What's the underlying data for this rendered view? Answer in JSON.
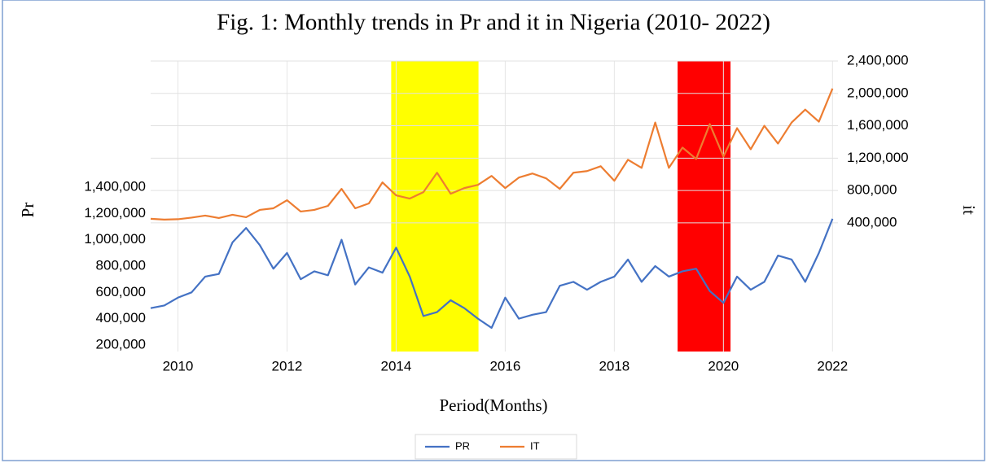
{
  "chart_data": {
    "type": "line",
    "title": "Fig. 1: Monthly trends in Pr and it in Nigeria (2010- 2022)",
    "xlabel": "Period(Months)",
    "ylabel": "Pr",
    "y2label": "it",
    "x": [
      2009.5,
      2009.75,
      2010,
      2010.25,
      2010.5,
      2010.75,
      2011,
      2011.25,
      2011.5,
      2011.75,
      2012,
      2012.25,
      2012.5,
      2012.75,
      2013,
      2013.25,
      2013.5,
      2013.75,
      2014,
      2014.25,
      2014.5,
      2014.75,
      2015,
      2015.25,
      2015.5,
      2015.75,
      2016,
      2016.25,
      2016.5,
      2016.75,
      2017,
      2017.25,
      2017.5,
      2017.75,
      2018,
      2018.25,
      2018.5,
      2018.75,
      2019,
      2019.25,
      2019.5,
      2019.75,
      2020,
      2020.25,
      2020.5,
      2020.75,
      2021,
      2021.25,
      2021.5,
      2021.75,
      2022
    ],
    "series": [
      {
        "name": "PR",
        "color": "#4472c4",
        "axis": "y",
        "values": [
          480000,
          500000,
          560000,
          600000,
          720000,
          740000,
          980000,
          1090000,
          960000,
          780000,
          900000,
          700000,
          760000,
          730000,
          1000000,
          660000,
          790000,
          750000,
          940000,
          720000,
          420000,
          450000,
          540000,
          480000,
          400000,
          330000,
          560000,
          400000,
          430000,
          450000,
          650000,
          680000,
          620000,
          680000,
          720000,
          850000,
          680000,
          800000,
          720000,
          760000,
          780000,
          610000,
          520000,
          720000,
          620000,
          680000,
          880000,
          850000,
          680000,
          900000,
          1160000
        ]
      },
      {
        "name": "IT",
        "color": "#ed7d31",
        "axis": "y2",
        "values": [
          450000,
          440000,
          445000,
          465000,
          490000,
          460000,
          500000,
          470000,
          560000,
          580000,
          680000,
          540000,
          560000,
          610000,
          820000,
          580000,
          640000,
          900000,
          740000,
          700000,
          780000,
          1020000,
          760000,
          830000,
          870000,
          980000,
          830000,
          960000,
          1010000,
          950000,
          820000,
          1020000,
          1040000,
          1100000,
          920000,
          1180000,
          1080000,
          1640000,
          1080000,
          1330000,
          1190000,
          1620000,
          1220000,
          1570000,
          1310000,
          1600000,
          1380000,
          1640000,
          1800000,
          1650000,
          2060000
        ]
      }
    ],
    "xlim": [
      2009.5,
      2022.1
    ],
    "xticks": [
      2010,
      2012,
      2014,
      2016,
      2018,
      2020,
      2022
    ],
    "ylim": [
      150000,
      2360000
    ],
    "yticks": [
      {
        "value": 200000,
        "label": "200,000"
      },
      {
        "value": 400000,
        "label": "400,000"
      },
      {
        "value": 600000,
        "label": "600,000"
      },
      {
        "value": 800000,
        "label": "800,000"
      },
      {
        "value": 1000000,
        "label": "1,000,000"
      },
      {
        "value": 1200000,
        "label": "1,200,000"
      },
      {
        "value": 1400000,
        "label": "1,400,000"
      }
    ],
    "y2lim": [
      -1190000,
      2400000
    ],
    "y2ticks": [
      {
        "value": 400000,
        "label": "400,000"
      },
      {
        "value": 800000,
        "label": "800,000"
      },
      {
        "value": 1200000,
        "label": "1,200,000"
      },
      {
        "value": 1600000,
        "label": "1,600,000"
      },
      {
        "value": 2000000,
        "label": "2,000,000"
      },
      {
        "value": 2400000,
        "label": "2,400,000"
      }
    ],
    "grid": true,
    "legend": "bottom",
    "bands": [
      {
        "start": 2013.91,
        "end": 2015.51,
        "color": "#ffff00"
      },
      {
        "start": 2019.16,
        "end": 2020.13,
        "color": "#ff0000"
      }
    ]
  }
}
